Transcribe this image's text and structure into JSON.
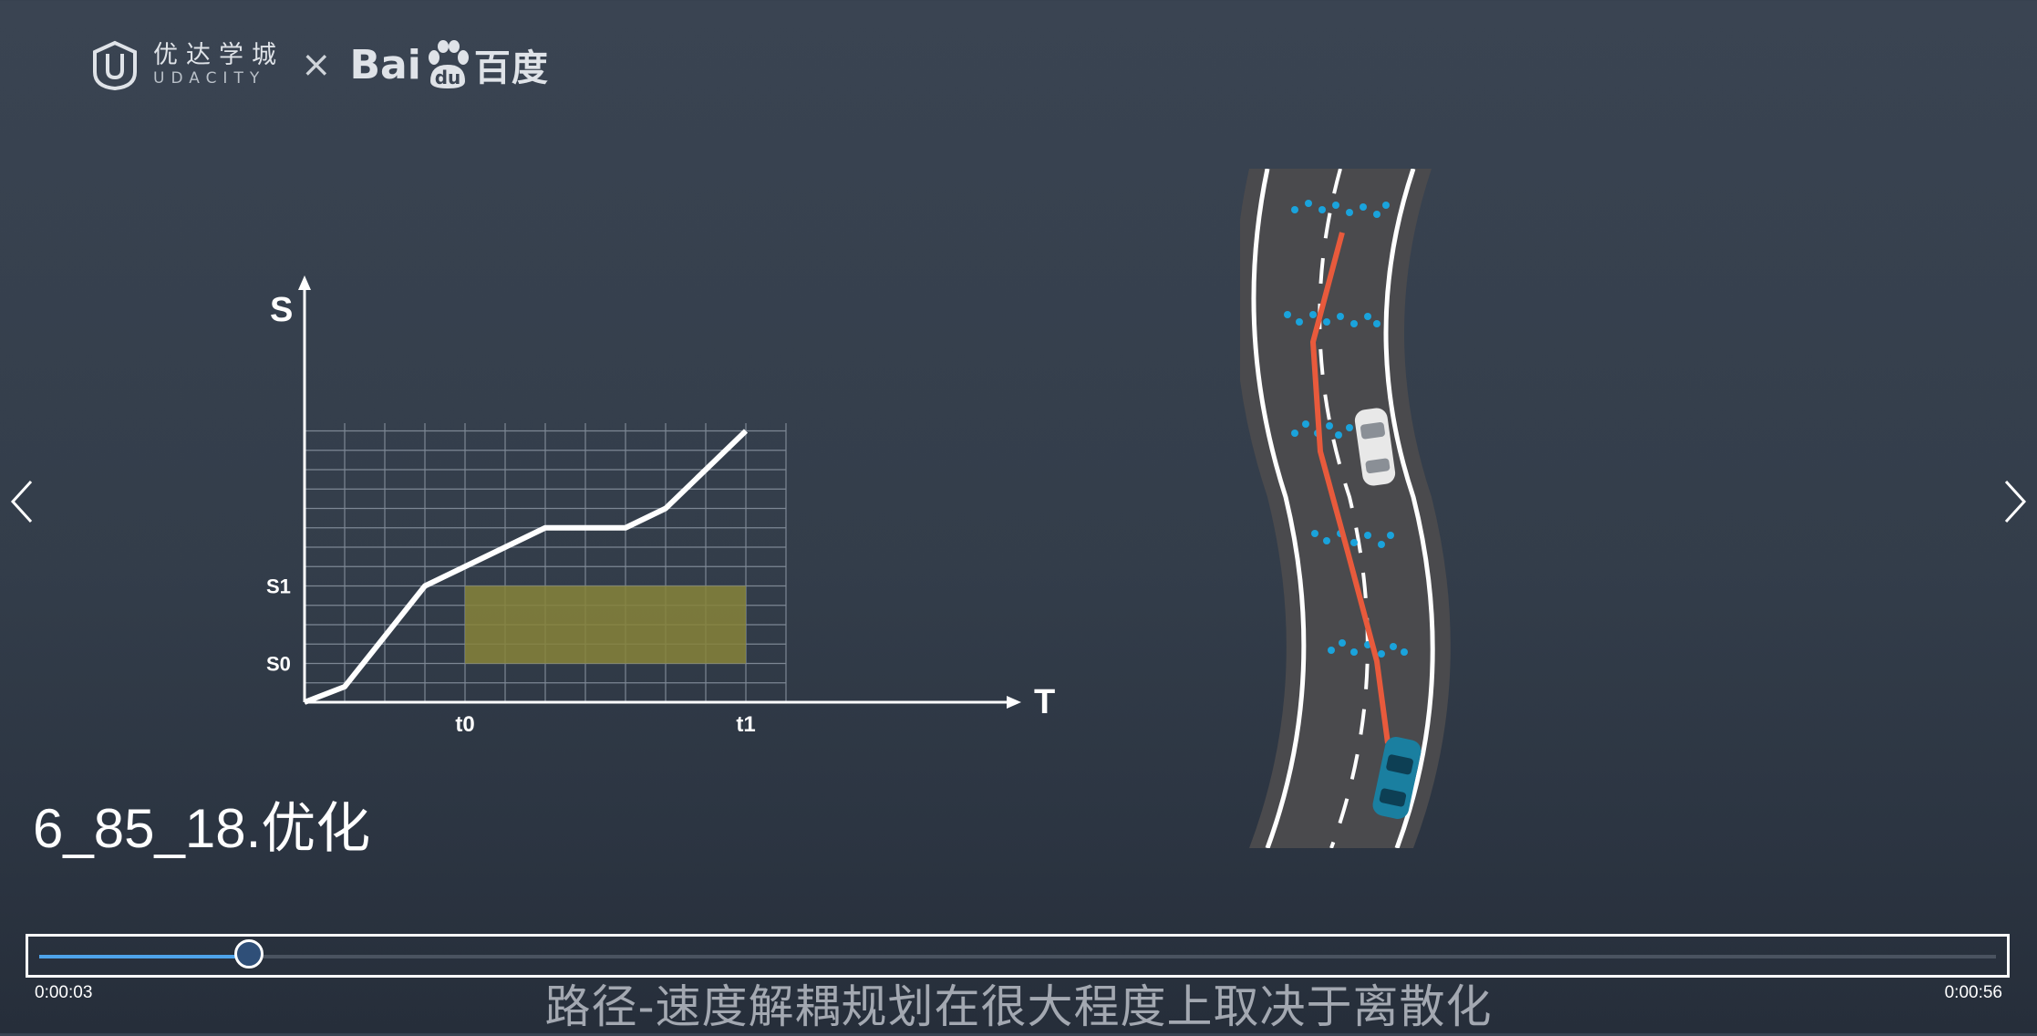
{
  "logo": {
    "udacity_zh": "优达学城",
    "udacity_en": "UDACITY",
    "times": "×",
    "baidu_a": "Bai",
    "baidu_du": "du",
    "baidu_zh": "百度"
  },
  "nav": {
    "prev_icon": "chevron-left-icon",
    "next_icon": "chevron-right-icon"
  },
  "chart_data": {
    "type": "line",
    "ylabel": "S",
    "xlabel": "T",
    "y_ticks": [
      "S1",
      "S0"
    ],
    "x_ticks": [
      "t0",
      "t1"
    ],
    "grid": true,
    "x": [
      0,
      1,
      3,
      4,
      6,
      8,
      9,
      11
    ],
    "y": [
      0,
      0.4,
      3,
      3.5,
      4.5,
      4.5,
      5,
      7
    ],
    "xlim": [
      0,
      12
    ],
    "ylim": [
      0,
      7.5
    ],
    "blocked_region": {
      "t_start": 4,
      "t_end": 11,
      "s_start": 1,
      "s_end": 3,
      "color": "#87843a"
    },
    "line_color": "#ffffff"
  },
  "road": {
    "path_color": "#e85a3c",
    "dot_color": "#1aa3dc",
    "ego_color": "#1a7fa0",
    "obstacle_color": "#e8e8e8"
  },
  "video": {
    "title": "6_85_18.优化",
    "current_time": "0:00:03",
    "total_time": "0:00:56",
    "progress": 0.107,
    "subtitle": "路径-速度解耦规划在很大程度上取决于离散化"
  }
}
